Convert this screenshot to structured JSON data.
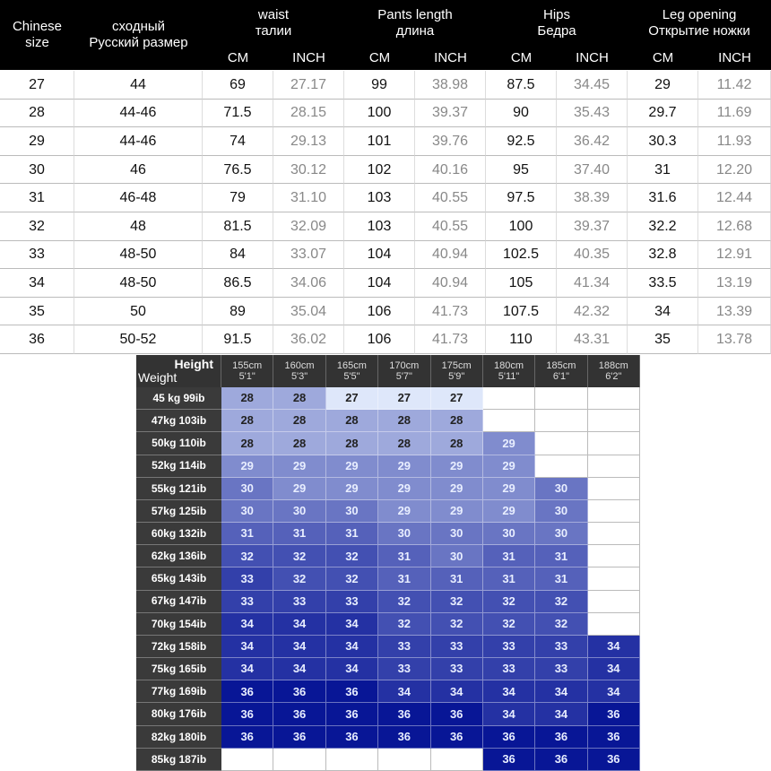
{
  "size_table": {
    "columns": [
      [
        "Chinese",
        "size"
      ],
      [
        "сходный",
        "Русский размер"
      ],
      [
        "waist",
        "талии"
      ],
      [
        "Pants length",
        "длина"
      ],
      [
        "Hips",
        "Бедра"
      ],
      [
        "Leg opening",
        "Открытие ножки"
      ]
    ],
    "units": [
      "CM",
      "INCH",
      "CM",
      "INCH",
      "CM",
      "INCH",
      "CM",
      "INCH"
    ],
    "rows": [
      [
        "27",
        "44",
        "69",
        "27.17",
        "99",
        "38.98",
        "87.5",
        "34.45",
        "29",
        "11.42"
      ],
      [
        "28",
        "44-46",
        "71.5",
        "28.15",
        "100",
        "39.37",
        "90",
        "35.43",
        "29.7",
        "11.69"
      ],
      [
        "29",
        "44-46",
        "74",
        "29.13",
        "101",
        "39.76",
        "92.5",
        "36.42",
        "30.3",
        "11.93"
      ],
      [
        "30",
        "46",
        "76.5",
        "30.12",
        "102",
        "40.16",
        "95",
        "37.40",
        "31",
        "12.20"
      ],
      [
        "31",
        "46-48",
        "79",
        "31.10",
        "103",
        "40.55",
        "97.5",
        "38.39",
        "31.6",
        "12.44"
      ],
      [
        "32",
        "48",
        "81.5",
        "32.09",
        "103",
        "40.55",
        "100",
        "39.37",
        "32.2",
        "12.68"
      ],
      [
        "33",
        "48-50",
        "84",
        "33.07",
        "104",
        "40.94",
        "102.5",
        "40.35",
        "32.8",
        "12.91"
      ],
      [
        "34",
        "48-50",
        "86.5",
        "34.06",
        "104",
        "40.94",
        "105",
        "41.34",
        "33.5",
        "13.19"
      ],
      [
        "35",
        "50",
        "89",
        "35.04",
        "106",
        "41.73",
        "107.5",
        "42.32",
        "34",
        "13.39"
      ],
      [
        "36",
        "50-52",
        "91.5",
        "36.02",
        "106",
        "41.73",
        "110",
        "43.31",
        "35",
        "13.78"
      ]
    ]
  },
  "fit_table": {
    "corner_top": "Height",
    "corner_bottom": "Weight",
    "heights": [
      [
        "155cm",
        "5'1\""
      ],
      [
        "160cm",
        "5'3\""
      ],
      [
        "165cm",
        "5'5\""
      ],
      [
        "170cm",
        "5'7\""
      ],
      [
        "175cm",
        "5'9\""
      ],
      [
        "180cm",
        "5'11\""
      ],
      [
        "185cm",
        "6'1\""
      ],
      [
        "188cm",
        "6'2\""
      ]
    ],
    "rows": [
      {
        "weight": "45 kg 99ib",
        "sizes": [
          28,
          28,
          27,
          27,
          27,
          null,
          null,
          null
        ]
      },
      {
        "weight": "47kg 103ib",
        "sizes": [
          28,
          28,
          28,
          28,
          28,
          null,
          null,
          null
        ]
      },
      {
        "weight": "50kg 110ib",
        "sizes": [
          28,
          28,
          28,
          28,
          28,
          29,
          null,
          null
        ]
      },
      {
        "weight": "52kg 114ib",
        "sizes": [
          29,
          29,
          29,
          29,
          29,
          29,
          null,
          null
        ]
      },
      {
        "weight": "55kg 121ib",
        "sizes": [
          30,
          29,
          29,
          29,
          29,
          29,
          30,
          null
        ]
      },
      {
        "weight": "57kg 125ib",
        "sizes": [
          30,
          30,
          30,
          29,
          29,
          29,
          30,
          null
        ]
      },
      {
        "weight": "60kg 132ib",
        "sizes": [
          31,
          31,
          31,
          30,
          30,
          30,
          30,
          null
        ]
      },
      {
        "weight": "62kg 136ib",
        "sizes": [
          32,
          32,
          32,
          31,
          30,
          31,
          31,
          null
        ]
      },
      {
        "weight": "65kg 143ib",
        "sizes": [
          33,
          32,
          32,
          31,
          31,
          31,
          31,
          null
        ]
      },
      {
        "weight": "67kg 147ib",
        "sizes": [
          33,
          33,
          33,
          32,
          32,
          32,
          32,
          null
        ]
      },
      {
        "weight": "70kg 154ib",
        "sizes": [
          34,
          34,
          34,
          32,
          32,
          32,
          32,
          null
        ]
      },
      {
        "weight": "72kg 158ib",
        "sizes": [
          34,
          34,
          34,
          33,
          33,
          33,
          33,
          34
        ]
      },
      {
        "weight": "75kg 165ib",
        "sizes": [
          34,
          34,
          34,
          33,
          33,
          33,
          33,
          34
        ]
      },
      {
        "weight": "77kg 169ib",
        "sizes": [
          36,
          36,
          36,
          34,
          34,
          34,
          34,
          34
        ]
      },
      {
        "weight": "80kg 176ib",
        "sizes": [
          36,
          36,
          36,
          36,
          36,
          34,
          34,
          36
        ]
      },
      {
        "weight": "82kg 180ib",
        "sizes": [
          36,
          36,
          36,
          36,
          36,
          36,
          36,
          36
        ]
      },
      {
        "weight": "85kg 187ib",
        "sizes": [
          null,
          null,
          null,
          null,
          null,
          36,
          36,
          36
        ]
      }
    ]
  }
}
